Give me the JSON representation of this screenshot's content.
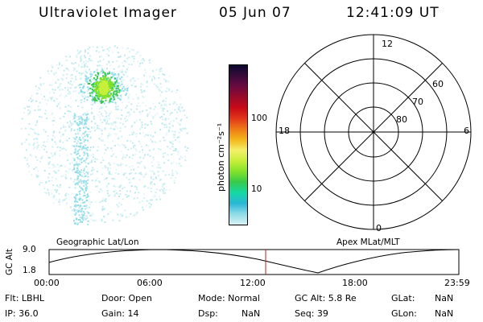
{
  "header": {
    "title": "Ultraviolet Imager",
    "date": "05 Jun 07",
    "time": "12:41:09 UT"
  },
  "colorbar": {
    "label": "photon cm⁻²s⁻¹",
    "ticks": [
      "100",
      "10"
    ],
    "colors": [
      "#0b0830",
      "#3a0a3a",
      "#6a0a40",
      "#990b2a",
      "#c80a18",
      "#e0361a",
      "#ee7a16",
      "#f4b51a",
      "#f4ef6a",
      "#c8ef3a",
      "#82e22a",
      "#37c94a",
      "#14d8a4",
      "#29b6d6",
      "#8fdce8",
      "#d8f2f4"
    ]
  },
  "polar": {
    "mlt_labels": {
      "top": "12",
      "left": "18",
      "right": "6",
      "bottom": "0"
    },
    "lat_labels": [
      "60",
      "70",
      "80"
    ]
  },
  "timeline": {
    "left_title": "Geographic Lat/Lon",
    "right_title": "Apex MLat/MLT",
    "axis_label": "GC Alt",
    "y_max": "9.0",
    "y_min": "1.8",
    "x_ticks": [
      "00:00",
      "06:00",
      "12:00",
      "18:00",
      "23:59"
    ],
    "marker_time": "12:41:09",
    "marker_color": "#b02020"
  },
  "status": {
    "flt": "Flt: LBHL",
    "door": "Door: Open",
    "mode": "Mode: Normal",
    "gc_alt": "GC Alt: 5.8 Re",
    "glat": "GLat:",
    "glat_val": "NaN",
    "ip": "IP: 36.0",
    "gain": "Gain: 14",
    "dsp": "Dsp:",
    "dsp_val": "NaN",
    "seq": "Seq: 39",
    "glon": "GLon:",
    "glon_val": "NaN"
  }
}
